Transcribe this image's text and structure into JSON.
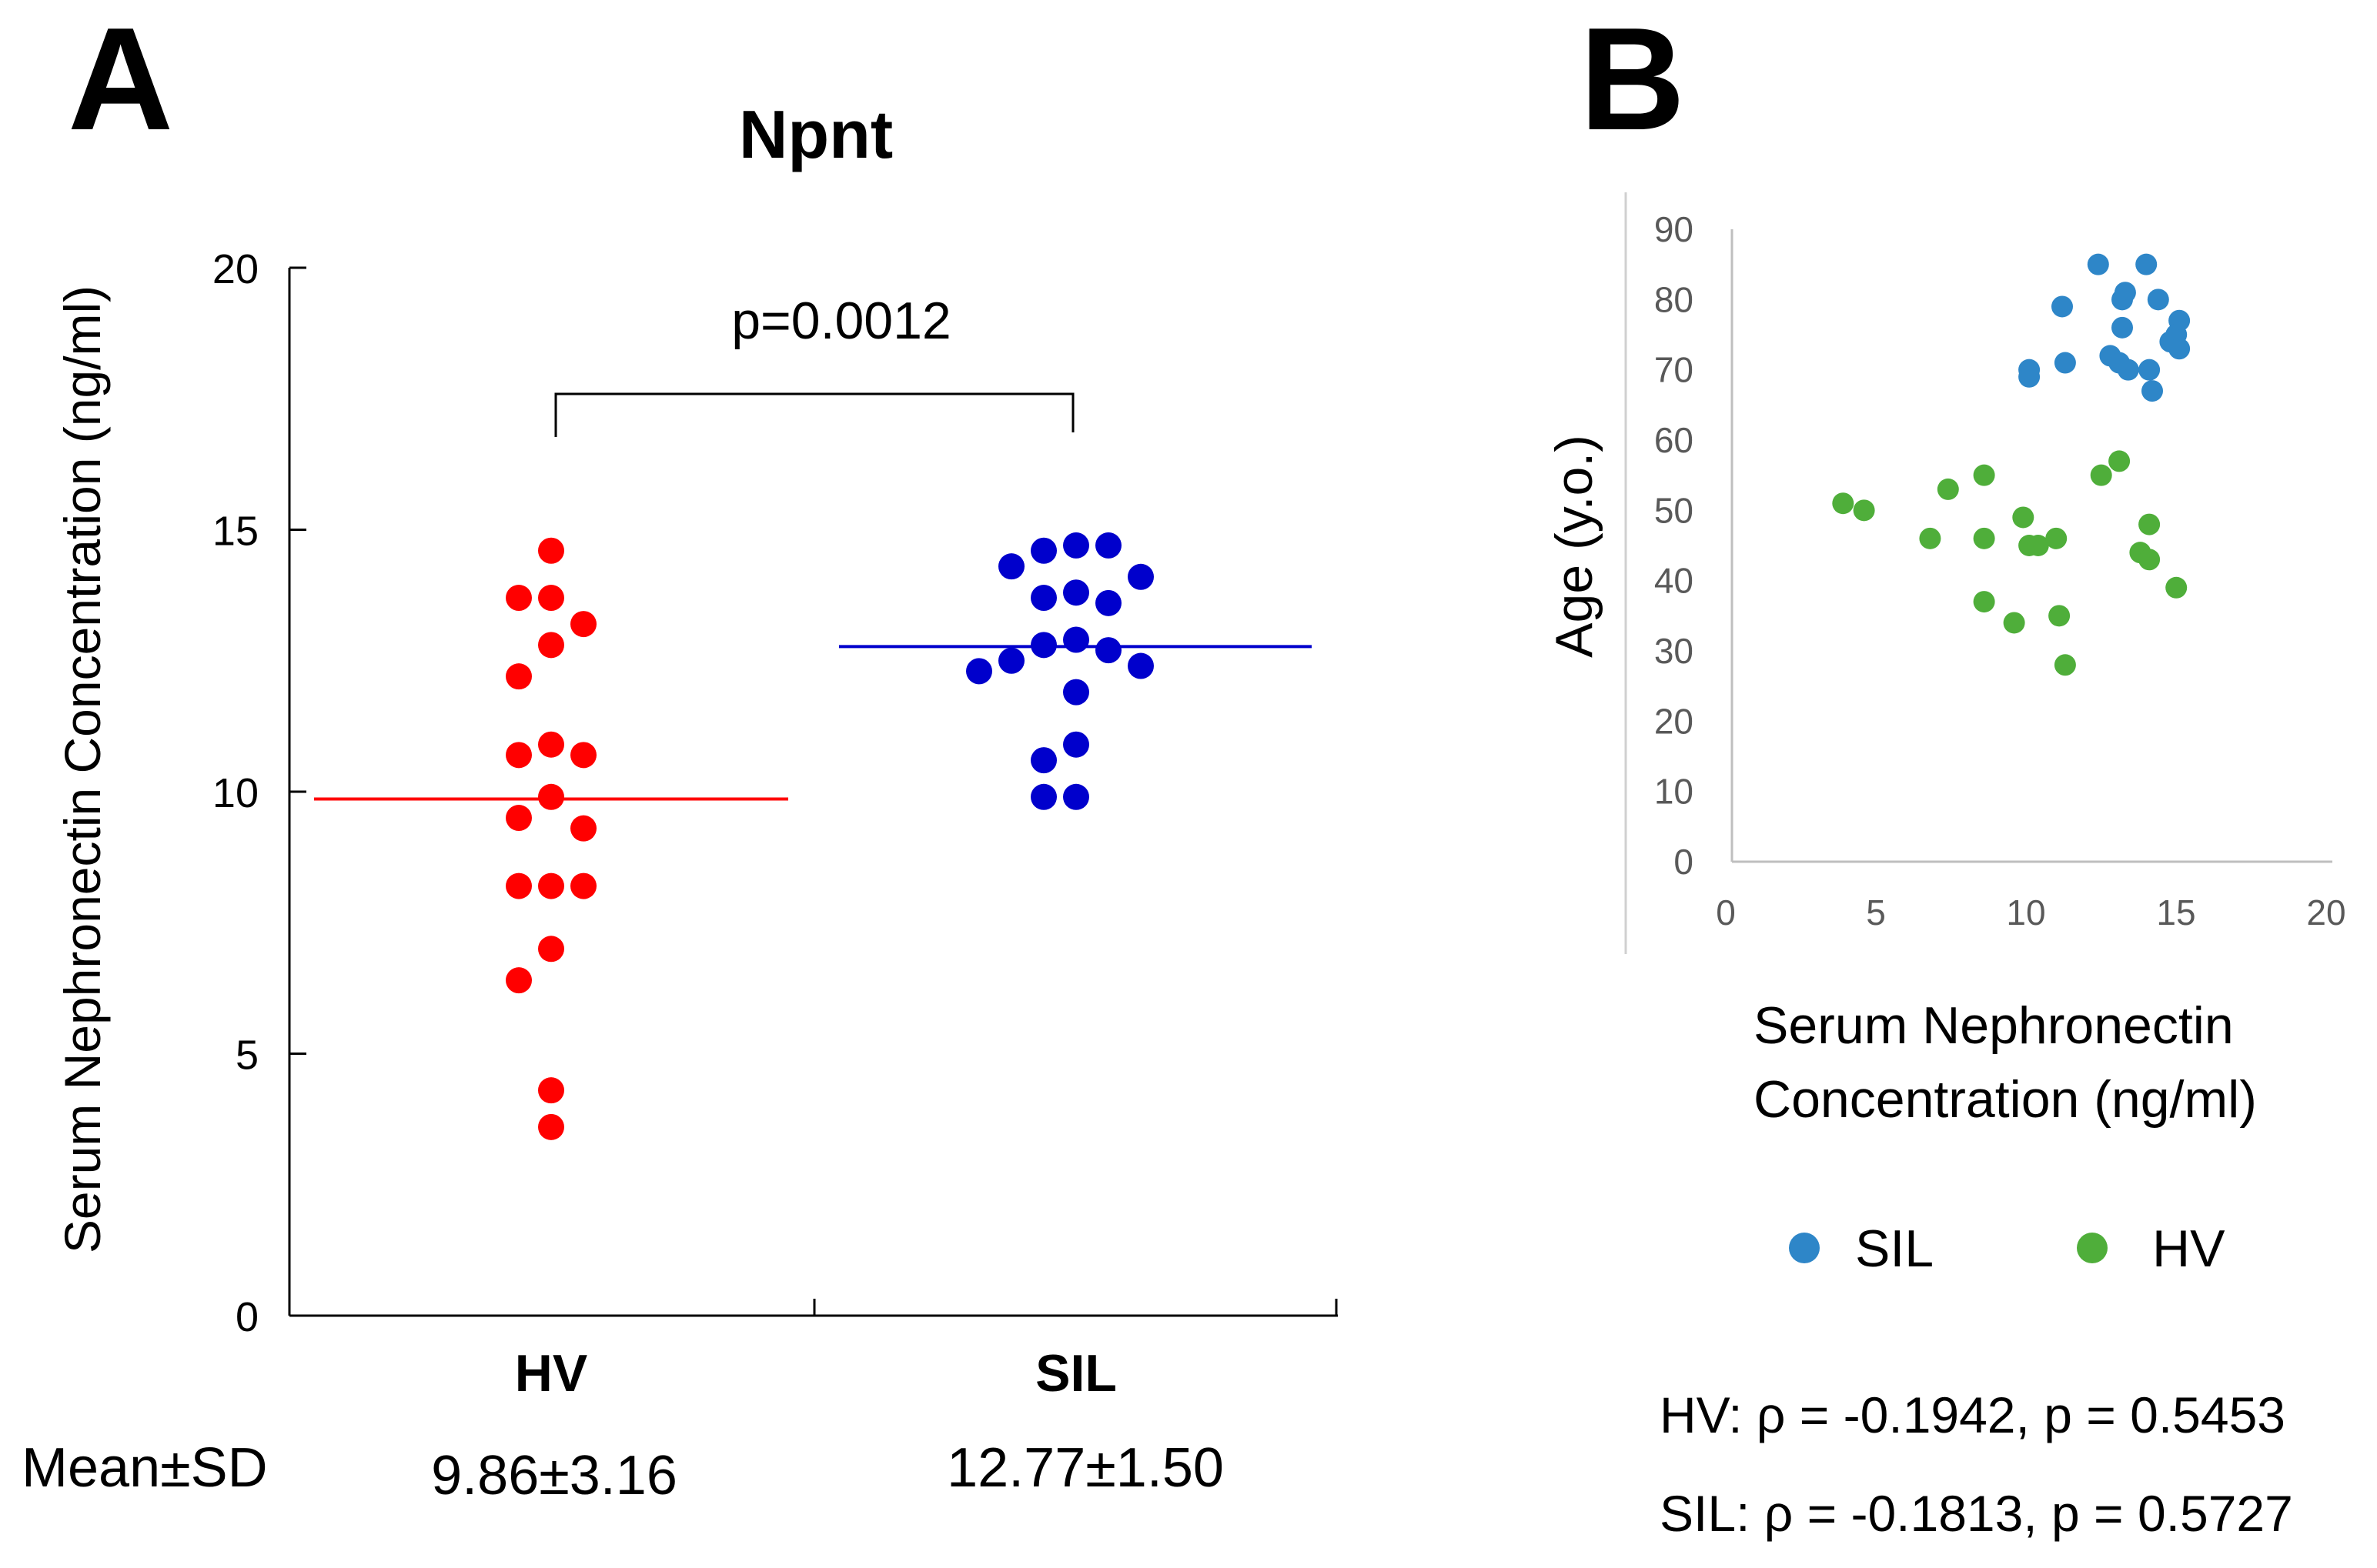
{
  "panel_a": {
    "letter": "A",
    "title": "Npnt",
    "ylabel": "Serum Nephronectin Concentration (ng/ml)",
    "significance_label": "p=0.0012",
    "mean_sd_label": "Mean±SD",
    "colors": {
      "HV": "#ff0000",
      "SIL": "#0000cc"
    }
  },
  "panel_b": {
    "letter": "B",
    "xlabel_line1": "Serum Nephronectin",
    "xlabel_line2": "Concentration (ng/ml)",
    "ylabel": "Age (y.o.)",
    "legend": [
      {
        "name": "SIL",
        "color": "#2e86c8"
      },
      {
        "name": "HV",
        "color": "#4fae3a"
      }
    ],
    "stats": [
      "HV: ρ = -0.1942, p = 0.5453",
      "SIL: ρ = -0.1813, p = 0.5727"
    ]
  },
  "chart_data": [
    {
      "type": "scatter",
      "title": "Npnt",
      "xlabel": "",
      "ylabel": "Serum Nephronectin Concentration (ng/ml)",
      "categories": [
        "HV",
        "SIL"
      ],
      "ylim": [
        0,
        20
      ],
      "yticks": [
        0,
        5,
        10,
        15,
        20
      ],
      "annotation": "p=0.0012",
      "series": [
        {
          "name": "HV",
          "mean": 9.86,
          "sd": 3.16,
          "mean_sd_text": "9.86±3.16",
          "values": [
            14.6,
            13.7,
            13.7,
            13.2,
            12.8,
            12.2,
            10.9,
            10.7,
            10.7,
            9.9,
            9.5,
            9.3,
            8.2,
            8.2,
            8.2,
            7.0,
            6.4,
            4.3,
            3.6
          ]
        },
        {
          "name": "SIL",
          "mean": 12.77,
          "sd": 1.5,
          "mean_sd_text": "12.77±1.50",
          "values": [
            14.7,
            14.6,
            14.7,
            14.3,
            14.1,
            13.8,
            13.7,
            13.6,
            12.9,
            12.8,
            12.7,
            12.5,
            12.4,
            12.3,
            11.9,
            10.9,
            10.6,
            9.9,
            9.9
          ]
        }
      ]
    },
    {
      "type": "scatter",
      "title": "",
      "xlabel": "Serum Nephronectin Concentration (ng/ml)",
      "ylabel": "Age (y.o.)",
      "xlim": [
        0,
        20
      ],
      "ylim": [
        0,
        90
      ],
      "xticks": [
        0,
        5,
        10,
        15,
        20
      ],
      "yticks": [
        0,
        10,
        20,
        30,
        40,
        50,
        60,
        70,
        80,
        90
      ],
      "legend_position": "bottom",
      "series": [
        {
          "name": "SIL",
          "x": [
            12.2,
            13.8,
            13.0,
            13.1,
            11.0,
            14.2,
            14.9,
            14.8,
            13.0,
            11.1,
            9.9,
            9.9,
            12.6,
            12.9,
            13.2,
            13.9,
            14.6,
            14.9,
            14.0
          ],
          "y": [
            85,
            85,
            80,
            81,
            79,
            80,
            77,
            75,
            76,
            71,
            70,
            69,
            72,
            71,
            70,
            70,
            74,
            73,
            67
          ]
        },
        {
          "name": "HV",
          "x": [
            3.7,
            4.4,
            6.6,
            7.2,
            8.4,
            8.4,
            8.4,
            9.4,
            9.7,
            9.9,
            10.2,
            10.8,
            10.9,
            11.1,
            12.3,
            12.9,
            13.6,
            13.9,
            13.9,
            14.8
          ],
          "y": [
            51,
            50,
            46,
            53,
            55,
            46,
            37,
            34,
            49,
            45,
            45,
            46,
            35,
            28,
            55,
            57,
            44,
            43,
            48,
            39
          ]
        }
      ]
    }
  ]
}
